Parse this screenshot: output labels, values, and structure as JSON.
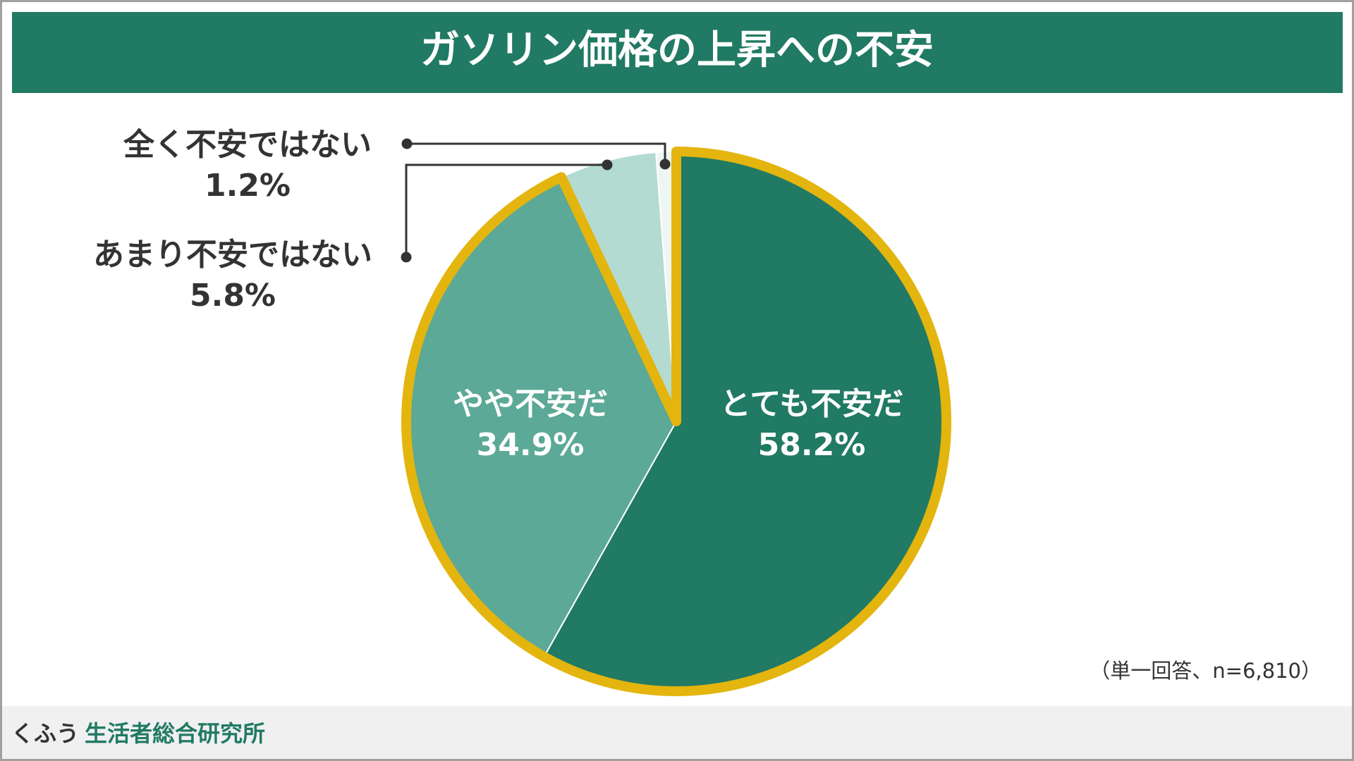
{
  "chart_data": {
    "type": "pie",
    "title": "ガソリン価格の上昇への不安",
    "categories": [
      "とても不安だ",
      "やや不安だ",
      "あまり不安ではない",
      "全く不安ではない"
    ],
    "values": [
      58.2,
      34.9,
      5.8,
      1.2
    ],
    "value_labels": [
      "58.2%",
      "34.9%",
      "5.8%",
      "1.2%"
    ],
    "colors": [
      "#217a63",
      "#5ba996",
      "#b3dbd2",
      "#eef6f3"
    ],
    "highlighted": [
      true,
      true,
      false,
      false
    ],
    "highlight_color": "#e3b50e",
    "note": "（単一回答、n=6,810）"
  },
  "footer": {
    "brand_prefix": "くふう",
    "brand_name": "生活者総合研究所"
  }
}
